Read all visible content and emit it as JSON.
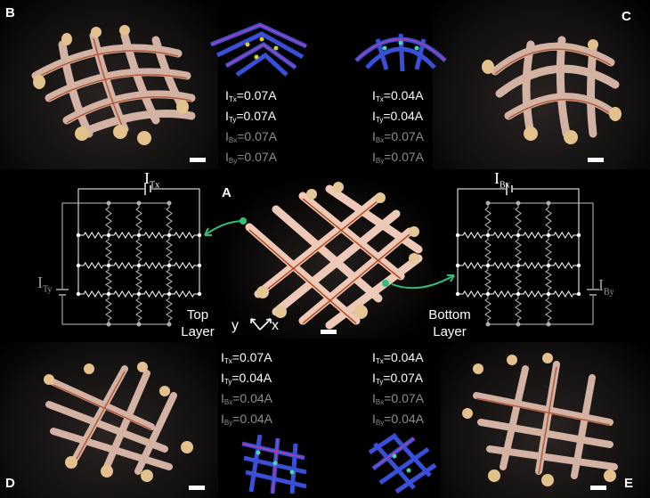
{
  "panels": {
    "a": {
      "letter": "A"
    },
    "b": {
      "letter": "B"
    },
    "c": {
      "letter": "C"
    },
    "d": {
      "letter": "D"
    },
    "e": {
      "letter": "E"
    }
  },
  "currents": {
    "b": [
      {
        "sym": "I",
        "sub": "Tx",
        "val": "=0.07A",
        "dim": false
      },
      {
        "sym": "I",
        "sub": "Ty",
        "val": "=0.07A",
        "dim": false
      },
      {
        "sym": "I",
        "sub": "Bx",
        "val": "=0.07A",
        "dim": true
      },
      {
        "sym": "I",
        "sub": "By",
        "val": "=0.07A",
        "dim": true
      }
    ],
    "c": [
      {
        "sym": "I",
        "sub": "Tx",
        "val": "=0.04A",
        "dim": false
      },
      {
        "sym": "I",
        "sub": "Ty",
        "val": "=0.04A",
        "dim": false
      },
      {
        "sym": "I",
        "sub": "Bx",
        "val": "=0.07A",
        "dim": true
      },
      {
        "sym": "I",
        "sub": "By",
        "val": "=0.07A",
        "dim": true
      }
    ],
    "d": [
      {
        "sym": "I",
        "sub": "Tx",
        "val": "=0.07A",
        "dim": false
      },
      {
        "sym": "I",
        "sub": "Ty",
        "val": "=0.04A",
        "dim": false
      },
      {
        "sym": "I",
        "sub": "Bx",
        "val": "=0.04A",
        "dim": true
      },
      {
        "sym": "I",
        "sub": "By",
        "val": "=0.04A",
        "dim": true
      }
    ],
    "e": [
      {
        "sym": "I",
        "sub": "Tx",
        "val": "=0.04A",
        "dim": false
      },
      {
        "sym": "I",
        "sub": "Ty",
        "val": "=0.07A",
        "dim": false
      },
      {
        "sym": "I",
        "sub": "Bx",
        "val": "=0.07A",
        "dim": true
      },
      {
        "sym": "I",
        "sub": "By",
        "val": "=0.04A",
        "dim": true
      }
    ]
  },
  "circuit": {
    "top": {
      "source_x": {
        "sym": "I",
        "sub": "Tx"
      },
      "source_y": {
        "sym": "I",
        "sub": "Ty"
      },
      "caption_line1": "Top",
      "caption_line2": "Layer"
    },
    "bottom": {
      "source_x": {
        "sym": "I",
        "sub": "Bx"
      },
      "source_y": {
        "sym": "I",
        "sub": "By"
      },
      "caption_line1": "Bottom",
      "caption_line2": "Layer"
    }
  },
  "axes": {
    "y": "y",
    "x": "x"
  },
  "colors": {
    "arrow": "#2fbf7a",
    "wire_top": "#ffffff",
    "wire_bottom": "#bbbbbb",
    "strip": "#e9c7b9",
    "copper": "#b5542a"
  }
}
